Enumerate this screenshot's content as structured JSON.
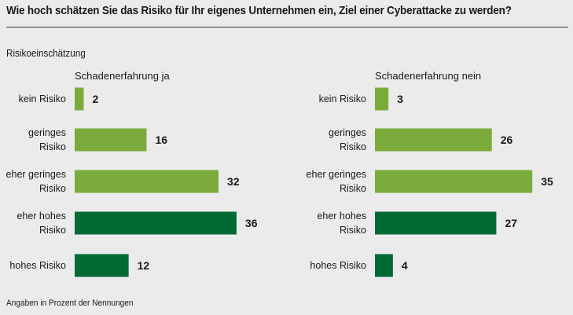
{
  "chart_data": {
    "type": "bar",
    "orientation": "horizontal",
    "title": "Wie hoch schätzen Sie das Risiko für Ihr eigenes Unternehmen ein, Ziel einer Cyberattacke zu werden?",
    "subtitle": "Risikoeinschätzung",
    "footnote": "Angaben in Prozent der Nennungen",
    "categories": [
      [
        "kein Risiko"
      ],
      [
        "geringes",
        "Risiko"
      ],
      [
        "eher geringes",
        "Risiko"
      ],
      [
        "eher hohes",
        "Risiko"
      ],
      [
        "hohes Risiko"
      ]
    ],
    "category_colors": [
      "#7aab3b",
      "#7aab3b",
      "#7aab3b",
      "#006a35",
      "#006a35"
    ],
    "series": [
      {
        "name": "Schadenerfahrung ja",
        "values": [
          2,
          16,
          32,
          36,
          12
        ]
      },
      {
        "name": "Schadenerfahrung nein",
        "values": [
          3,
          26,
          35,
          27,
          4
        ]
      }
    ],
    "xlim": [
      0,
      36
    ],
    "grid": false,
    "legend": "none"
  }
}
